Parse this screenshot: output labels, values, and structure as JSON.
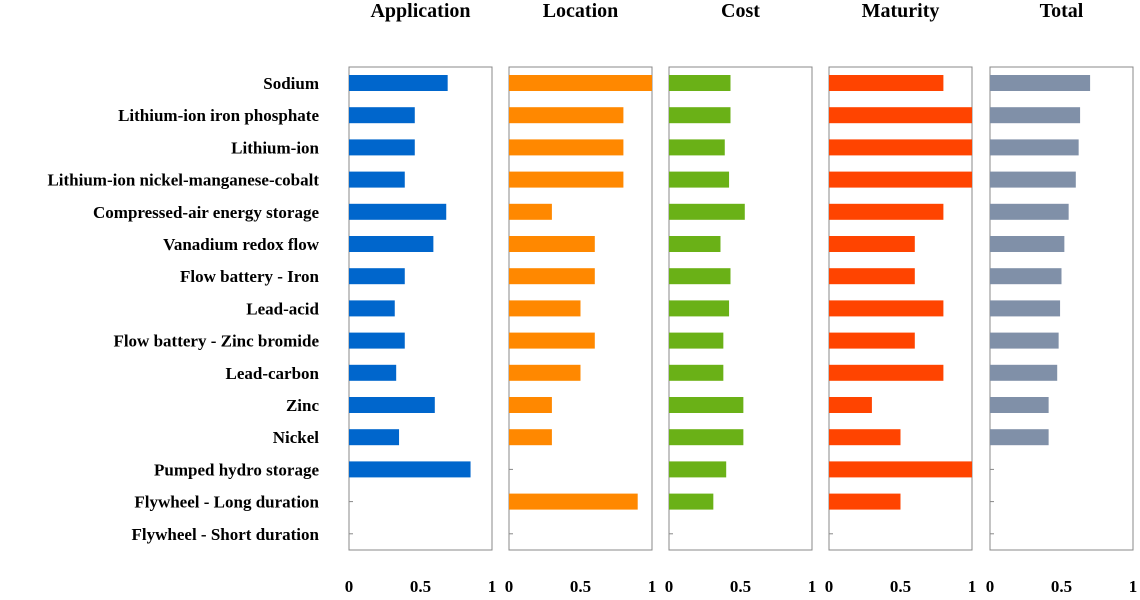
{
  "chart_data": {
    "type": "bar",
    "orientation": "horizontal",
    "categories": [
      "Sodium",
      "Lithium-ion iron phosphate",
      "Lithium-ion",
      "Lithium-ion nickel-manganese-cobalt",
      "Compressed-air energy storage",
      "Vanadium redox flow",
      "Flow battery - Iron",
      "Lead-acid",
      "Flow battery - Zinc bromide",
      "Lead-carbon",
      "Zinc",
      "Nickel",
      "Pumped hydro storage",
      "Flywheel - Long duration",
      "Flywheel - Short duration"
    ],
    "xlim": [
      0,
      1
    ],
    "x_ticks": [
      "0",
      "0.5",
      "1"
    ],
    "series": [
      {
        "name": "Application",
        "color": "#0066cc",
        "values": [
          0.69,
          0.46,
          0.46,
          0.39,
          0.68,
          0.59,
          0.39,
          0.32,
          0.39,
          0.33,
          0.6,
          0.35,
          0.85,
          null,
          null
        ]
      },
      {
        "name": "Location",
        "color": "#ff8800",
        "values": [
          1.0,
          0.8,
          0.8,
          0.8,
          0.3,
          0.6,
          0.6,
          0.5,
          0.6,
          0.5,
          0.3,
          0.3,
          null,
          0.9,
          null
        ]
      },
      {
        "name": "Cost",
        "color": "#6ab117",
        "values": [
          0.43,
          0.43,
          0.39,
          0.42,
          0.53,
          0.36,
          0.43,
          0.42,
          0.38,
          0.38,
          0.52,
          0.52,
          0.4,
          0.31,
          null
        ]
      },
      {
        "name": "Maturity",
        "color": "#ff4400",
        "values": [
          0.8,
          1.0,
          1.0,
          1.0,
          0.8,
          0.6,
          0.6,
          0.8,
          0.6,
          0.8,
          0.3,
          0.5,
          1.0,
          0.5,
          null
        ]
      },
      {
        "name": "Total",
        "color": "#8090a8",
        "values": [
          0.7,
          0.63,
          0.62,
          0.6,
          0.55,
          0.52,
          0.5,
          0.49,
          0.48,
          0.47,
          0.41,
          0.41,
          null,
          null,
          null
        ]
      }
    ]
  }
}
